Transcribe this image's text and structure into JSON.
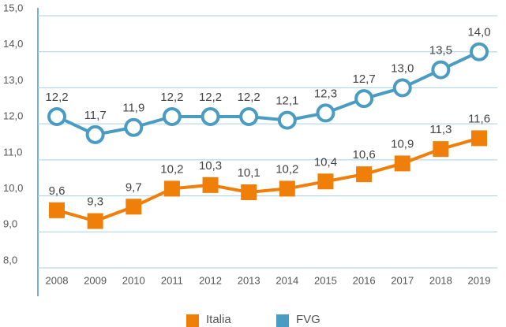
{
  "chart_data": {
    "type": "line",
    "categories": [
      "2008",
      "2009",
      "2010",
      "2011",
      "2012",
      "2013",
      "2014",
      "2015",
      "2016",
      "2017",
      "2018",
      "2019"
    ],
    "series": [
      {
        "name": "Italia",
        "color": "#f07f09",
        "marker": "square",
        "values": [
          9.6,
          9.3,
          9.7,
          10.2,
          10.3,
          10.1,
          10.2,
          10.4,
          10.6,
          10.9,
          11.3,
          11.6
        ],
        "value_labels": [
          "9,6",
          "9,3",
          "9,7",
          "10,2",
          "10,3",
          "10,1",
          "10,2",
          "10,4",
          "10,6",
          "10,9",
          "11,3",
          "11,6"
        ]
      },
      {
        "name": "FVG",
        "color": "#4a9cc2",
        "marker": "circle",
        "values": [
          12.2,
          11.7,
          11.9,
          12.2,
          12.2,
          12.2,
          12.1,
          12.3,
          12.7,
          13.0,
          13.5,
          14.0
        ],
        "value_labels": [
          "12,2",
          "11,7",
          "11,9",
          "12,2",
          "12,2",
          "12,2",
          "12,1",
          "12,3",
          "12,7",
          "13,0",
          "13,5",
          "14,0"
        ]
      }
    ],
    "ylim": [
      8,
      15
    ],
    "yticks": [
      {
        "value": 8,
        "label": "8,0"
      },
      {
        "value": 9,
        "label": "9,0"
      },
      {
        "value": 10,
        "label": "10,0"
      },
      {
        "value": 11,
        "label": "11,0"
      },
      {
        "value": 12,
        "label": "12,0"
      },
      {
        "value": 13,
        "label": "13,0"
      },
      {
        "value": 14,
        "label": "14,0"
      },
      {
        "value": 15,
        "label": "15,0"
      }
    ],
    "grid": true,
    "legend": "bottom"
  }
}
